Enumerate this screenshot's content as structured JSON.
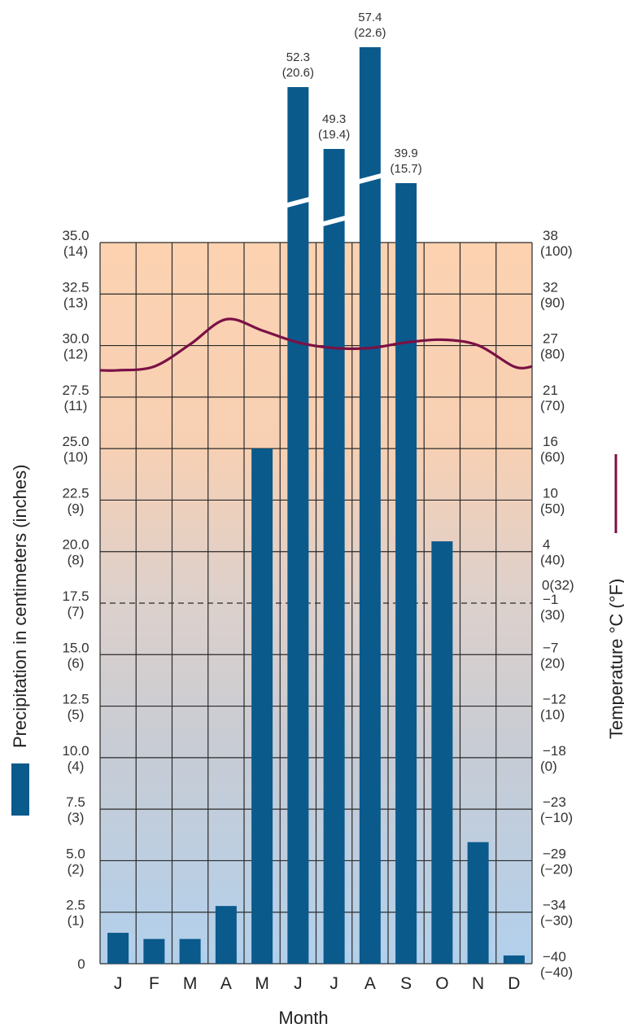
{
  "chart_data": {
    "type": "bar",
    "categories": [
      "J",
      "F",
      "M",
      "A",
      "M",
      "J",
      "J",
      "A",
      "S",
      "O",
      "N",
      "D"
    ],
    "xlabel": "Month",
    "ylabel": "Precipitation in centimeters (inches)",
    "ylabel_right": "Temperature °C (°F)",
    "ylim": [
      0,
      35
    ],
    "series": [
      {
        "name": "Precipitation in centimeters (inches)",
        "values": [
          1.5,
          1.2,
          1.2,
          2.8,
          25.0,
          52.3,
          49.3,
          57.4,
          39.9,
          20.5,
          5.9,
          0.4
        ]
      },
      {
        "name": "Temperature °C (°F)",
        "values": [
          24.0,
          24.4,
          26.8,
          29.5,
          28.3,
          27.0,
          26.4,
          26.4,
          27.0,
          27.3,
          26.7,
          24.4
        ]
      }
    ],
    "broken_bar_labels": [
      {
        "category_index": 5,
        "line1": "52.3",
        "line2": "(20.6)"
      },
      {
        "category_index": 6,
        "line1": "49.3",
        "line2": "(19.4)"
      },
      {
        "category_index": 7,
        "line1": "57.4",
        "line2": "(22.6)"
      },
      {
        "category_index": 8,
        "line1": "39.9",
        "line2": "(15.7)"
      }
    ],
    "left_ticks": [
      {
        "line1": "0",
        "line2": ""
      },
      {
        "line1": "2.5",
        "line2": "(1)"
      },
      {
        "line1": "5.0",
        "line2": "(2)"
      },
      {
        "line1": "7.5",
        "line2": "(3)"
      },
      {
        "line1": "10.0",
        "line2": "(4)"
      },
      {
        "line1": "12.5",
        "line2": "(5)"
      },
      {
        "line1": "15.0",
        "line2": "(6)"
      },
      {
        "line1": "17.5",
        "line2": "(7)"
      },
      {
        "line1": "20.0",
        "line2": "(8)"
      },
      {
        "line1": "22.5",
        "line2": "(9)"
      },
      {
        "line1": "25.0",
        "line2": "(10)"
      },
      {
        "line1": "27.5",
        "line2": "(11)"
      },
      {
        "line1": "30.0",
        "line2": "(12)"
      },
      {
        "line1": "32.5",
        "line2": "(13)"
      },
      {
        "line1": "35.0",
        "line2": "(14)"
      }
    ],
    "right_ticks": [
      {
        "line1": "−40",
        "line2": "(−40)"
      },
      {
        "line1": "−34",
        "line2": "(−30)"
      },
      {
        "line1": "−29",
        "line2": "(−20)"
      },
      {
        "line1": "−23",
        "line2": "(−10)"
      },
      {
        "line1": "−18",
        "line2": "(0)"
      },
      {
        "line1": "−12",
        "line2": "(10)"
      },
      {
        "line1": "−7",
        "line2": "(20)"
      },
      {
        "line1": "−1",
        "line2": "(30)"
      },
      {
        "line1": "0(32)",
        "line2": ""
      },
      {
        "line1": "4",
        "line2": "(40)"
      },
      {
        "line1": "10",
        "line2": "(50)"
      },
      {
        "line1": "16",
        "line2": "(60)"
      },
      {
        "line1": "21",
        "line2": "(70)"
      },
      {
        "line1": "27",
        "line2": "(80)"
      },
      {
        "line1": "32",
        "line2": "(90)"
      },
      {
        "line1": "38",
        "line2": "(100)"
      }
    ],
    "grid": true,
    "freezing_line_dashed": true,
    "colors": {
      "bar": "#0b5a8c",
      "temperature_line": "#7a1145",
      "background_warm": "#fcd2b1",
      "background_cool": "#b2d0ec",
      "grid": "#2a2a2a"
    }
  }
}
